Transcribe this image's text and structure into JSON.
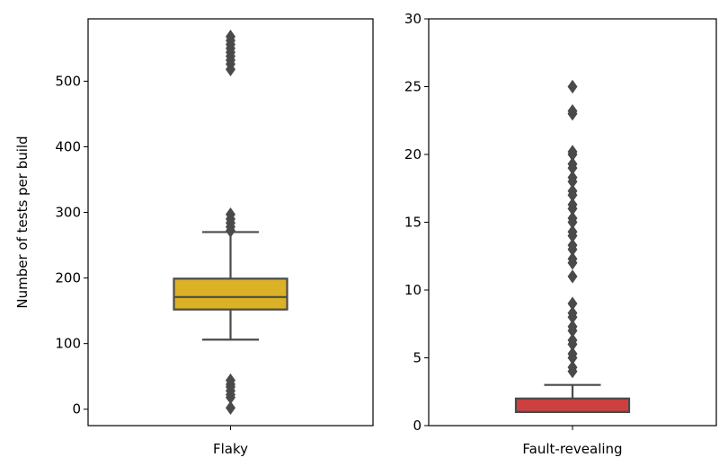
{
  "chart_data": [
    {
      "type": "box",
      "ylabel": "Number of tests per build",
      "xlabel": "",
      "categories": [
        "Flaky"
      ],
      "ylim": [
        -25,
        595
      ],
      "yticks": [
        0,
        100,
        200,
        300,
        400,
        500
      ],
      "color": "#dbb226",
      "box": {
        "whisker_low": 106,
        "q1": 152,
        "median": 171,
        "q3": 199,
        "whisker_high": 270
      },
      "outliers": [
        2,
        18,
        22,
        28,
        34,
        38,
        44,
        272,
        278,
        284,
        290,
        297,
        518,
        526,
        532,
        538,
        544,
        550,
        556,
        562,
        568
      ]
    },
    {
      "type": "box",
      "ylabel": "",
      "xlabel": "",
      "categories": [
        "Fault-revealing"
      ],
      "ylim": [
        0,
        30
      ],
      "yticks": [
        0,
        5,
        10,
        15,
        20,
        25,
        30
      ],
      "color": "#cc4040",
      "box": {
        "whisker_low": 1,
        "q1": 1,
        "median": 1,
        "q3": 2,
        "whisker_high": 3
      },
      "outliers": [
        4,
        4.3,
        5,
        5.3,
        6,
        6.3,
        7,
        7.3,
        8,
        8.3,
        9,
        11,
        12,
        12.3,
        13,
        13.3,
        14,
        14.3,
        15,
        15.3,
        16,
        16.3,
        17,
        17.3,
        18,
        18.3,
        19,
        19.3,
        20,
        20.2,
        23,
        23.2,
        25
      ]
    }
  ]
}
